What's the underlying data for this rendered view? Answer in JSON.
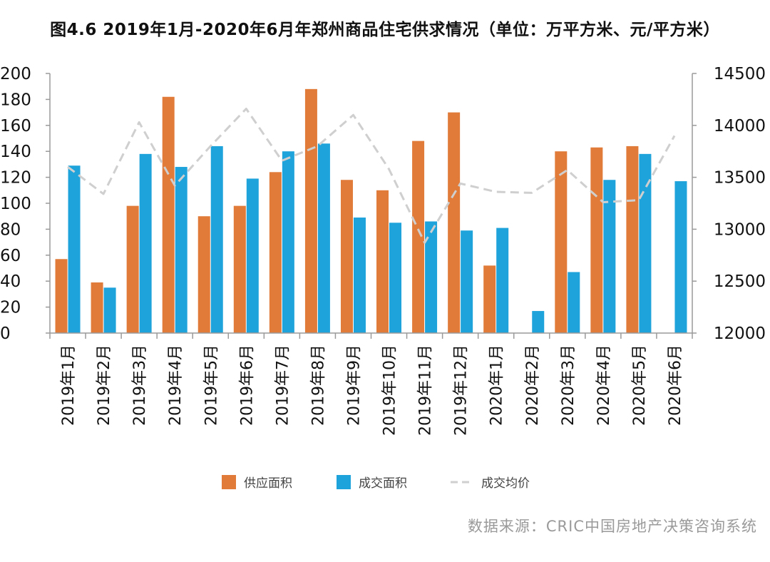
{
  "title": "图4.6 2019年1月-2020年6月年郑州商品住宅供求情况（单位：万平方米、元/平方米）",
  "source": "数据来源：CRIC中国房地产决策咨询系统",
  "chart_data": {
    "type": "bar",
    "categories": [
      "2019年1月",
      "2019年2月",
      "2019年3月",
      "2019年4月",
      "2019年5月",
      "2019年6月",
      "2019年7月",
      "2019年8月",
      "2019年9月",
      "2019年10月",
      "2019年11月",
      "2019年12月",
      "2020年1月",
      "2020年2月",
      "2020年3月",
      "2020年4月",
      "2020年5月",
      "2020年6月"
    ],
    "series": [
      {
        "name": "供应面积",
        "type": "bar",
        "axis": "left",
        "color": "#E07B39",
        "values": [
          57,
          39,
          98,
          182,
          90,
          98,
          124,
          188,
          118,
          110,
          148,
          170,
          52,
          0,
          140,
          143,
          144,
          0
        ]
      },
      {
        "name": "成交面积",
        "type": "bar",
        "axis": "left",
        "color": "#1FA3DB",
        "values": [
          129,
          35,
          138,
          128,
          144,
          119,
          140,
          146,
          89,
          85,
          86,
          79,
          81,
          17,
          47,
          118,
          138,
          117
        ]
      },
      {
        "name": "成交均价",
        "type": "line",
        "style": "dashed",
        "axis": "right",
        "color": "#CFCFCF",
        "values": [
          13600,
          13340,
          14030,
          13420,
          13800,
          14160,
          13660,
          13800,
          14100,
          13580,
          12870,
          13440,
          13360,
          13350,
          13570,
          13260,
          13280,
          13900
        ]
      }
    ],
    "yleft": {
      "min": 0,
      "max": 200,
      "step": 20,
      "ticks": [
        "0",
        "20",
        "40",
        "60",
        "80",
        "100",
        "120",
        "140",
        "160",
        "180",
        "200"
      ]
    },
    "yright": {
      "min": 12000,
      "max": 14500,
      "step": 500,
      "ticks": [
        "12000",
        "12500",
        "13000",
        "13500",
        "14000",
        "14500"
      ]
    },
    "grid": false,
    "legend_position": "bottom"
  }
}
